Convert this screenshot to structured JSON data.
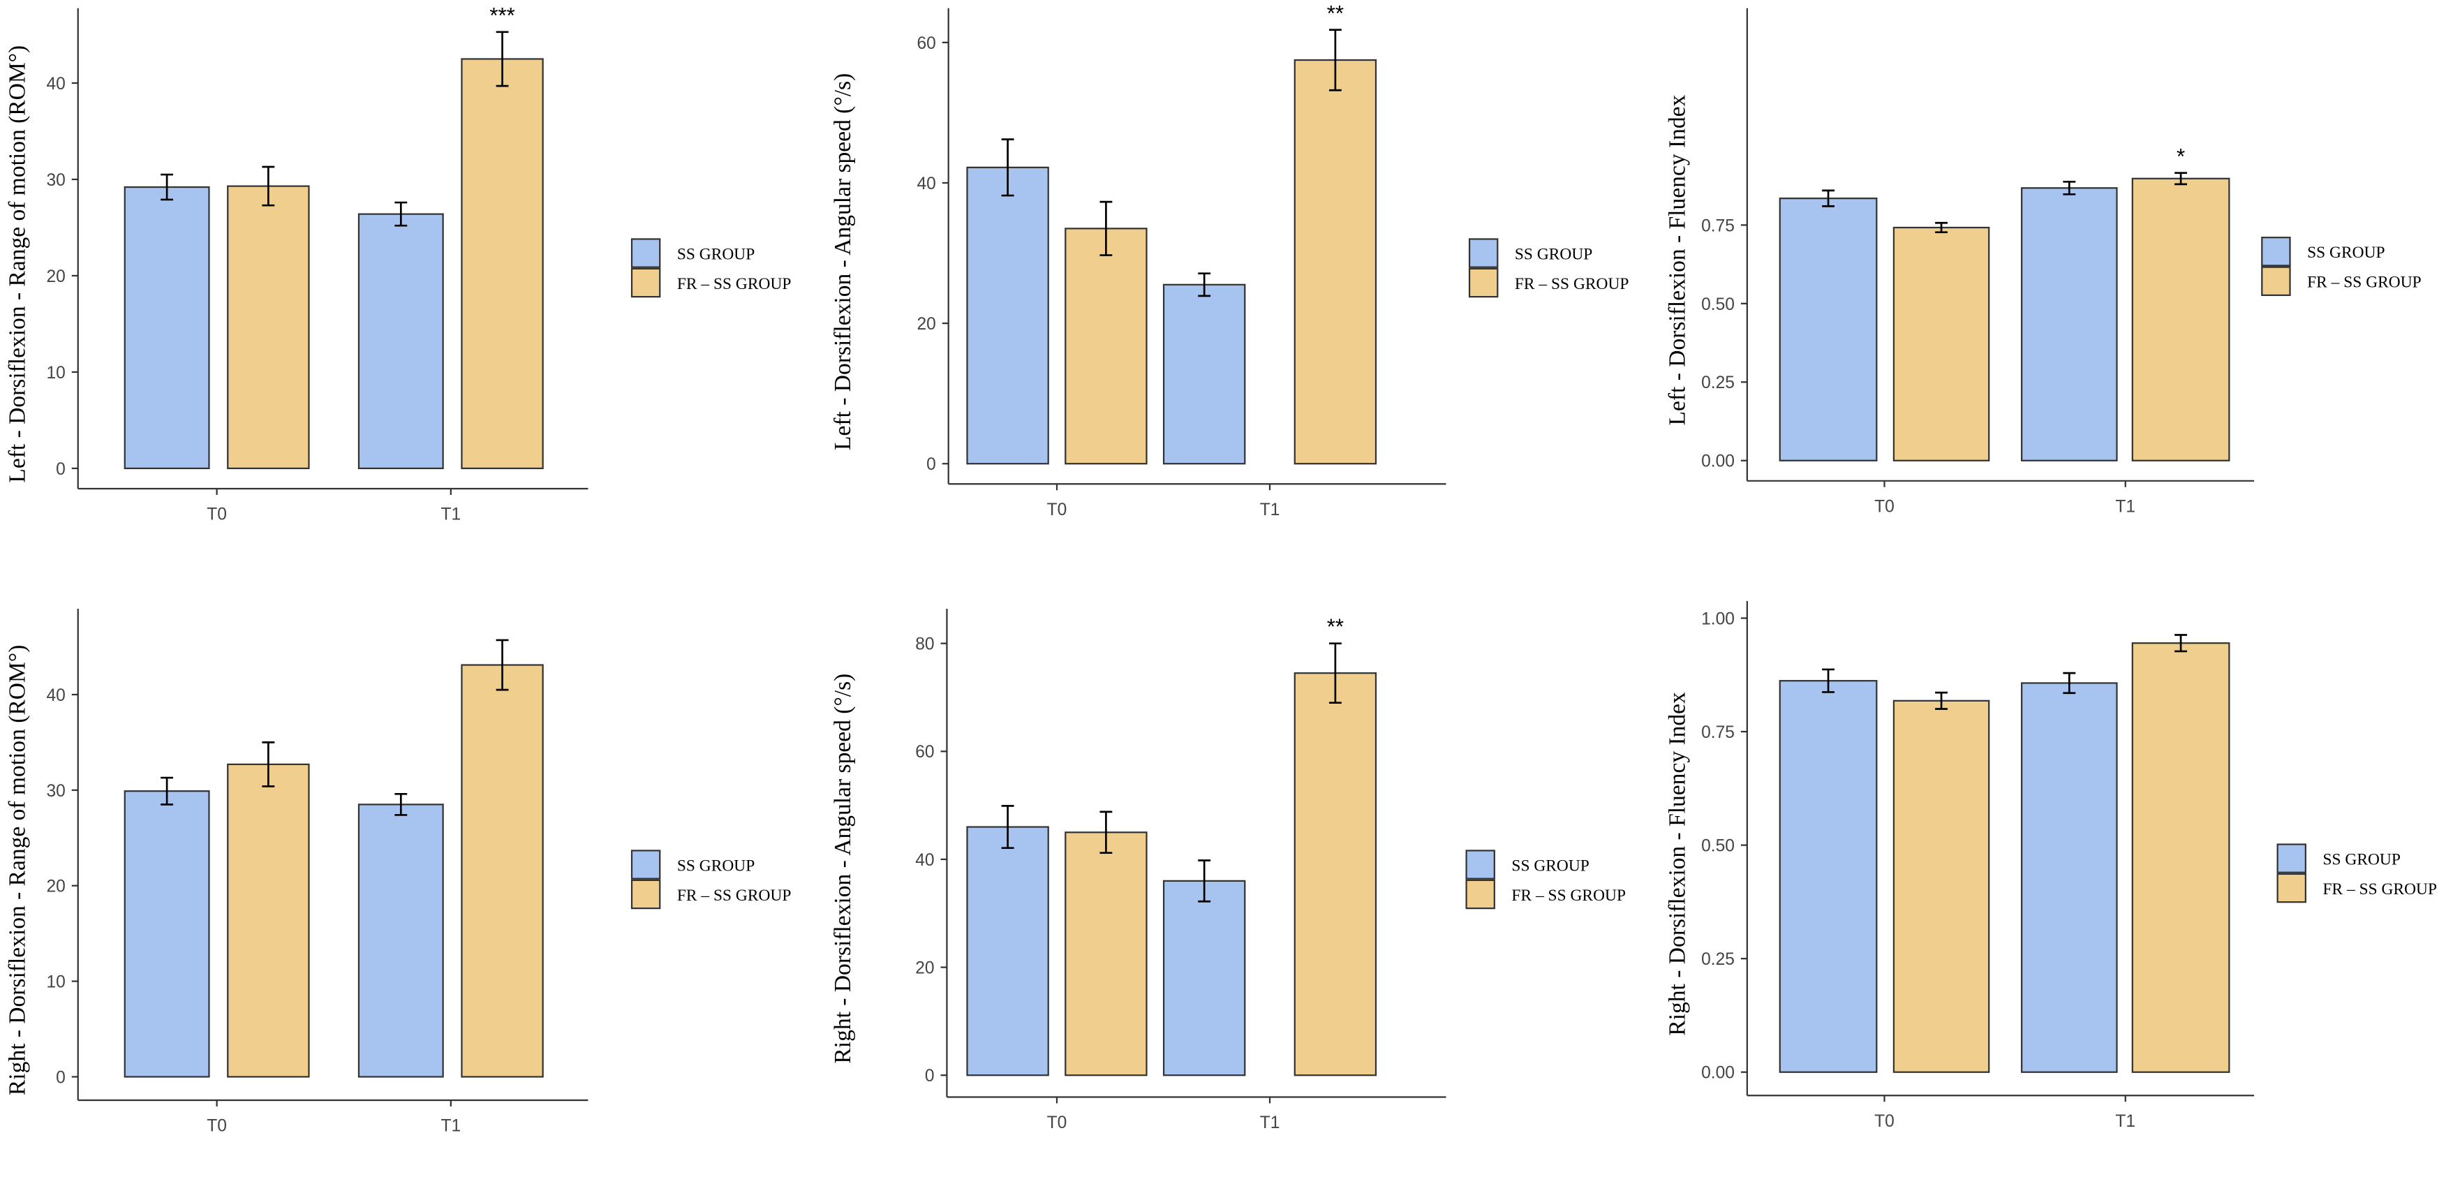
{
  "colors": {
    "ss": "#a7c4f0",
    "fr": "#f0cf8e",
    "stroke": "#333333"
  },
  "chart_data": [
    {
      "type": "bar",
      "title": "",
      "xlabel": "",
      "ylabel": "Left - Dorsiflexion - Range of motion (ROM°)",
      "categories": [
        "T0",
        "T1"
      ],
      "ylim": [
        0,
        45
      ],
      "yticks": [
        "0",
        "10",
        "20",
        "30",
        "40"
      ],
      "ytick_values": [
        0,
        10,
        20,
        30,
        40
      ],
      "series": [
        {
          "name": "SS GROUP",
          "values": [
            29.2,
            26.4
          ],
          "errors": [
            1.3,
            1.2
          ]
        },
        {
          "name": "FR – SS GROUP",
          "values": [
            29.3,
            42.5
          ],
          "errors": [
            2.0,
            2.8
          ]
        }
      ],
      "significance": [
        "",
        "***"
      ],
      "legend": "right"
    },
    {
      "type": "bar",
      "title": "",
      "xlabel": "",
      "ylabel": "Left - Dorsiflexion - Angular speed (°/s)",
      "categories": [
        "T0",
        "T1"
      ],
      "ylim": [
        0,
        62
      ],
      "yticks": [
        "0",
        "20",
        "40",
        "60"
      ],
      "ytick_values": [
        0,
        20,
        40,
        60
      ],
      "series": [
        {
          "name": "SS GROUP",
          "values": [
            42.2,
            25.5
          ],
          "errors": [
            4.0,
            1.6
          ]
        },
        {
          "name": "FR – SS GROUP",
          "values": [
            33.5,
            57.5
          ],
          "errors": [
            3.8,
            4.3
          ]
        }
      ],
      "significance": [
        "",
        "**"
      ],
      "legend": "right"
    },
    {
      "type": "bar",
      "title": "",
      "xlabel": "",
      "ylabel": "Left - Dorsiflexion - Fluency Index",
      "categories": [
        "T0",
        "T1"
      ],
      "ylim": [
        0,
        0.92
      ],
      "yticks": [
        "0.00",
        "0.25",
        "0.50",
        "0.75"
      ],
      "ytick_values": [
        0,
        0.25,
        0.5,
        0.75
      ],
      "series": [
        {
          "name": "SS GROUP",
          "values": [
            0.835,
            0.868
          ],
          "errors": [
            0.025,
            0.02
          ]
        },
        {
          "name": "FR – SS GROUP",
          "values": [
            0.742,
            0.898
          ],
          "errors": [
            0.015,
            0.018
          ]
        }
      ],
      "significance": [
        "",
        "*"
      ],
      "legend": "right"
    },
    {
      "type": "bar",
      "title": "",
      "xlabel": "",
      "ylabel": "Right - Dorsiflexion - Range of motion (ROM°)",
      "categories": [
        "T0",
        "T1"
      ],
      "ylim": [
        0,
        46
      ],
      "yticks": [
        "0",
        "10",
        "20",
        "30",
        "40"
      ],
      "ytick_values": [
        0,
        10,
        20,
        30,
        40
      ],
      "series": [
        {
          "name": "SS GROUP",
          "values": [
            29.9,
            28.5
          ],
          "errors": [
            1.4,
            1.1
          ]
        },
        {
          "name": "FR – SS GROUP",
          "values": [
            32.7,
            43.1
          ],
          "errors": [
            2.3,
            2.6
          ]
        }
      ],
      "significance": [
        "",
        ""
      ],
      "legend": "right"
    },
    {
      "type": "bar",
      "title": "",
      "xlabel": "",
      "ylabel": "Right - Dorsiflexion - Angular speed (°/s)",
      "categories": [
        "T0",
        "T1"
      ],
      "ylim": [
        0,
        80
      ],
      "yticks": [
        "0",
        "20",
        "40",
        "60",
        "80"
      ],
      "ytick_values": [
        0,
        20,
        40,
        60,
        80
      ],
      "series": [
        {
          "name": "SS GROUP",
          "values": [
            46.0,
            36.0
          ],
          "errors": [
            3.9,
            3.8
          ]
        },
        {
          "name": "FR – SS GROUP",
          "values": [
            45.0,
            74.5
          ],
          "errors": [
            3.8,
            5.5
          ]
        }
      ],
      "significance": [
        "",
        "**"
      ],
      "legend": "right"
    },
    {
      "type": "bar",
      "title": "",
      "xlabel": "",
      "ylabel": "Right - Dorsiflexion - Fluency Index",
      "categories": [
        "T0",
        "T1"
      ],
      "ylim": [
        0,
        1.0
      ],
      "yticks": [
        "0.00",
        "0.25",
        "0.50",
        "0.75",
        "1.00"
      ],
      "ytick_values": [
        0,
        0.25,
        0.5,
        0.75,
        1.0
      ],
      "series": [
        {
          "name": "SS GROUP",
          "values": [
            0.862,
            0.857
          ],
          "errors": [
            0.025,
            0.022
          ]
        },
        {
          "name": "FR – SS GROUP",
          "values": [
            0.818,
            0.945
          ],
          "errors": [
            0.018,
            0.018
          ]
        }
      ],
      "significance": [
        "",
        ""
      ],
      "legend": "right"
    }
  ]
}
